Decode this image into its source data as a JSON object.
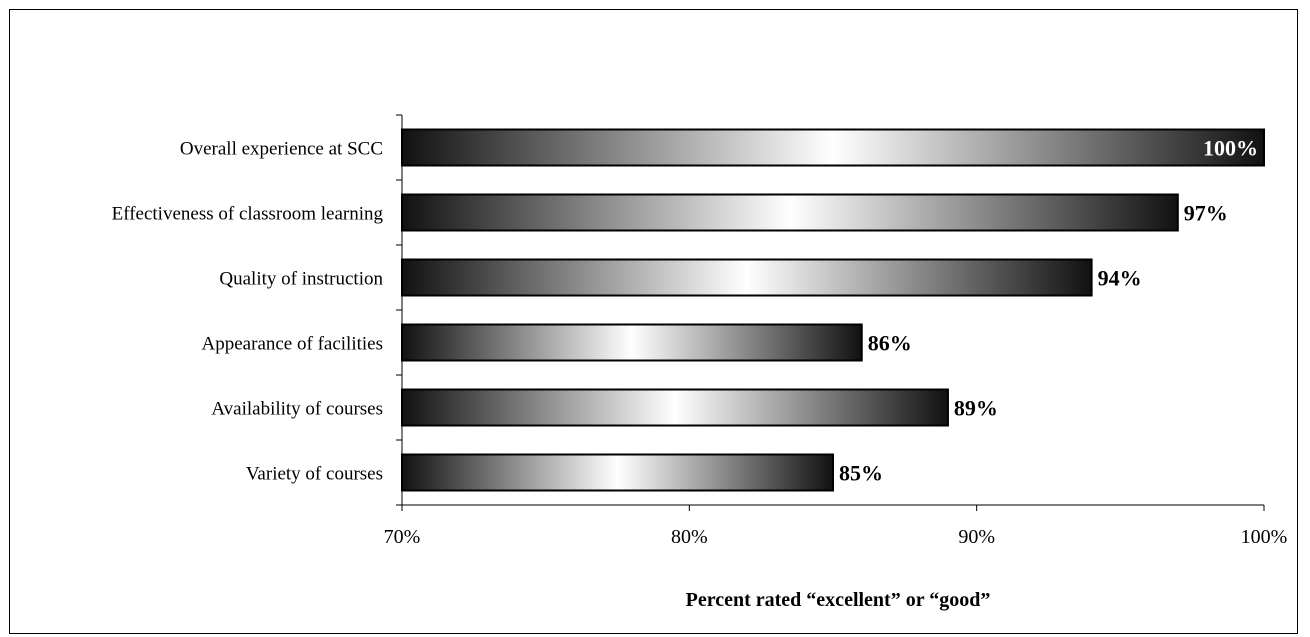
{
  "chart_data": {
    "type": "bar",
    "orientation": "horizontal",
    "title": "",
    "xlabel": "Percent rated “excellent” or “good”",
    "ylabel": "",
    "categories": [
      "Overall experience at SCC",
      "Effectiveness of classroom learning",
      "Quality of instruction",
      "Appearance of facilities",
      "Availability of courses",
      "Variety of courses"
    ],
    "values": [
      100,
      97,
      94,
      86,
      89,
      85
    ],
    "value_labels": [
      "100%",
      "97%",
      "94%",
      "86%",
      "89%",
      "85%"
    ],
    "xlim": [
      70,
      100
    ],
    "x_ticks": [
      70,
      80,
      90,
      100
    ],
    "x_tick_labels": [
      "70%",
      "80%",
      "90%",
      "100%"
    ],
    "grid": false,
    "legend": "none",
    "colors": {
      "bar_edge": "#000000",
      "bar_dark": "#111111",
      "bar_light": "#ffffff",
      "label_inside": "#ffffff",
      "label_outside": "#000000",
      "axis": "#000000"
    }
  }
}
